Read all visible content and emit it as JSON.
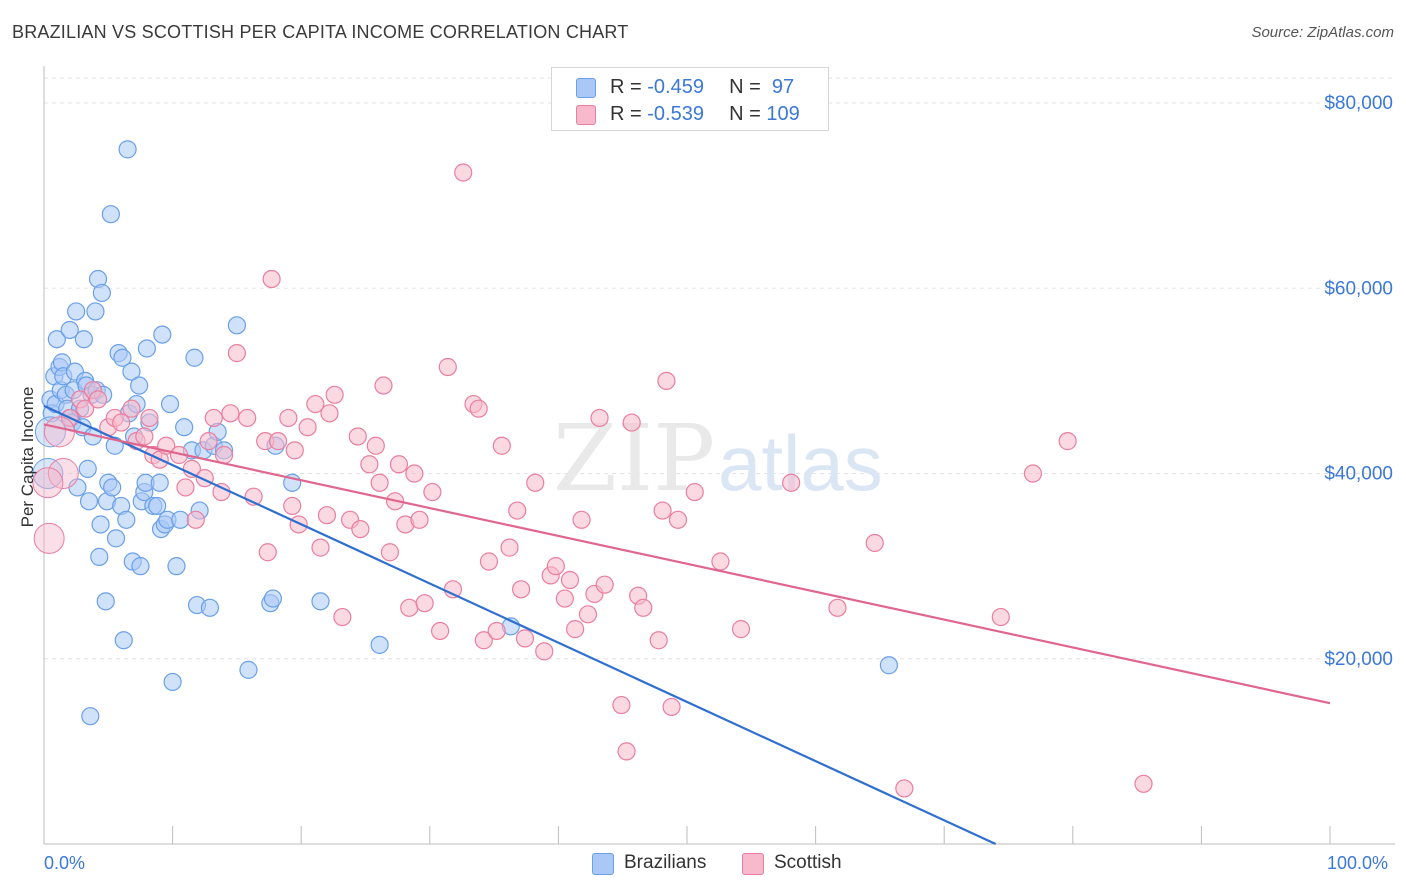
{
  "title": "BRAZILIAN VS SCOTTISH PER CAPITA INCOME CORRELATION CHART",
  "source": "Source: ZipAtlas.com",
  "legend": {
    "rows": [
      {
        "r_label": "R = ",
        "r_value": "-0.459",
        "n_label": "N = ",
        "n_value": " 97",
        "color": "#a9c8f5"
      },
      {
        "r_label": "R = ",
        "r_value": "-0.539",
        "n_label": "N = ",
        "n_value": "109",
        "color": "#f7b9cb"
      }
    ]
  },
  "bottom_legend": [
    {
      "label": "Brazilians",
      "color": "#a9c8f5"
    },
    {
      "label": "Scottish",
      "color": "#f7b9cb"
    }
  ],
  "watermark": {
    "zip": "ZIP",
    "atlas": "atlas"
  },
  "chart_data": {
    "type": "scatter",
    "title": "BRAZILIAN VS SCOTTISH PER CAPITA INCOME CORRELATION CHART",
    "xlabel": "",
    "ylabel": "Per Capita Income",
    "xlim": [
      0,
      100
    ],
    "ylim": [
      0,
      84000
    ],
    "x_tick_labels": [
      "0.0%",
      "100.0%"
    ],
    "y_ticks": [
      20000,
      40000,
      60000,
      80000
    ],
    "y_tick_labels": [
      "$20,000",
      "$40,000",
      "$60,000",
      "$80,000"
    ],
    "grid": true,
    "series": [
      {
        "name": "Brazilians",
        "color": "#6aa0ea",
        "fill": "#a9c8f5",
        "trend": {
          "x": [
            0,
            74
          ],
          "y": [
            47300,
            0
          ]
        },
        "points": [
          [
            0.5,
            48000
          ],
          [
            0.6,
            46500
          ],
          [
            0.8,
            50500
          ],
          [
            0.9,
            47500
          ],
          [
            1.0,
            54500
          ],
          [
            1.2,
            51500
          ],
          [
            1.3,
            49000
          ],
          [
            1.4,
            52000
          ],
          [
            1.5,
            50500
          ],
          [
            1.7,
            48500
          ],
          [
            1.8,
            47000
          ],
          [
            2.0,
            55500
          ],
          [
            2.1,
            46000
          ],
          [
            2.2,
            45500
          ],
          [
            2.3,
            49000
          ],
          [
            2.4,
            51000
          ],
          [
            2.5,
            57500
          ],
          [
            2.6,
            38500
          ],
          [
            2.8,
            47000
          ],
          [
            3.0,
            45000
          ],
          [
            3.1,
            54500
          ],
          [
            3.2,
            50000
          ],
          [
            3.3,
            49500
          ],
          [
            3.4,
            40500
          ],
          [
            3.5,
            37000
          ],
          [
            3.6,
            13800
          ],
          [
            3.7,
            48500
          ],
          [
            3.8,
            44000
          ],
          [
            4.0,
            57500
          ],
          [
            4.1,
            49000
          ],
          [
            4.2,
            61000
          ],
          [
            4.3,
            31000
          ],
          [
            4.4,
            34500
          ],
          [
            4.5,
            59500
          ],
          [
            4.6,
            48500
          ],
          [
            4.8,
            26200
          ],
          [
            4.9,
            37000
          ],
          [
            5.0,
            39000
          ],
          [
            5.2,
            68000
          ],
          [
            5.3,
            38500
          ],
          [
            5.5,
            43000
          ],
          [
            5.6,
            33000
          ],
          [
            5.8,
            53000
          ],
          [
            6.0,
            36500
          ],
          [
            6.1,
            52500
          ],
          [
            6.2,
            22000
          ],
          [
            6.4,
            35000
          ],
          [
            6.5,
            75000
          ],
          [
            6.6,
            46500
          ],
          [
            6.8,
            51000
          ],
          [
            6.9,
            30500
          ],
          [
            7.0,
            44000
          ],
          [
            7.2,
            47500
          ],
          [
            7.4,
            49500
          ],
          [
            7.5,
            30000
          ],
          [
            7.6,
            37000
          ],
          [
            7.8,
            38000
          ],
          [
            7.9,
            39000
          ],
          [
            8.0,
            53500
          ],
          [
            8.2,
            45500
          ],
          [
            8.5,
            36500
          ],
          [
            8.8,
            36500
          ],
          [
            9.0,
            39000
          ],
          [
            9.1,
            34000
          ],
          [
            9.2,
            55000
          ],
          [
            9.4,
            34500
          ],
          [
            9.6,
            35000
          ],
          [
            9.8,
            47500
          ],
          [
            10.0,
            17500
          ],
          [
            10.3,
            30000
          ],
          [
            10.6,
            35000
          ],
          [
            10.9,
            45000
          ],
          [
            11.5,
            42500
          ],
          [
            11.7,
            52500
          ],
          [
            11.9,
            25800
          ],
          [
            12.1,
            36000
          ],
          [
            12.4,
            42500
          ],
          [
            12.9,
            25500
          ],
          [
            13.2,
            43000
          ],
          [
            13.5,
            44500
          ],
          [
            14.0,
            42500
          ],
          [
            15.0,
            56000
          ],
          [
            15.9,
            18800
          ],
          [
            17.6,
            26000
          ],
          [
            17.8,
            26500
          ],
          [
            18.0,
            43000
          ],
          [
            19.3,
            39000
          ],
          [
            21.5,
            26200
          ],
          [
            26.1,
            21500
          ],
          [
            36.3,
            23500
          ],
          [
            65.7,
            19300
          ]
        ],
        "large_points": [
          [
            0.3,
            40000
          ],
          [
            0.5,
            44500
          ]
        ]
      },
      {
        "name": "Scottish",
        "color": "#ea7ea0",
        "fill": "#f7b9cb",
        "trend": {
          "x": [
            0,
            100
          ],
          "y": [
            45300,
            15200
          ]
        },
        "points": [
          [
            2.0,
            46000
          ],
          [
            2.8,
            48000
          ],
          [
            3.2,
            47000
          ],
          [
            3.8,
            49000
          ],
          [
            4.2,
            48000
          ],
          [
            5.0,
            45000
          ],
          [
            5.5,
            46000
          ],
          [
            6.0,
            45500
          ],
          [
            6.8,
            47000
          ],
          [
            7.2,
            43500
          ],
          [
            7.8,
            44000
          ],
          [
            8.2,
            46000
          ],
          [
            8.5,
            42000
          ],
          [
            9.0,
            41500
          ],
          [
            9.5,
            43000
          ],
          [
            10.5,
            42000
          ],
          [
            11.0,
            38500
          ],
          [
            11.5,
            40500
          ],
          [
            11.8,
            35000
          ],
          [
            12.5,
            39500
          ],
          [
            12.8,
            43500
          ],
          [
            13.2,
            46000
          ],
          [
            13.8,
            38000
          ],
          [
            14.0,
            42000
          ],
          [
            14.5,
            46500
          ],
          [
            15.0,
            53000
          ],
          [
            15.8,
            46000
          ],
          [
            16.3,
            37500
          ],
          [
            17.2,
            43500
          ],
          [
            17.4,
            31500
          ],
          [
            17.7,
            61000
          ],
          [
            18.2,
            43500
          ],
          [
            19.0,
            46000
          ],
          [
            19.3,
            36500
          ],
          [
            19.5,
            42500
          ],
          [
            19.8,
            34500
          ],
          [
            20.5,
            45000
          ],
          [
            21.1,
            47500
          ],
          [
            21.5,
            32000
          ],
          [
            22.0,
            35500
          ],
          [
            22.2,
            46500
          ],
          [
            22.6,
            48500
          ],
          [
            23.2,
            24500
          ],
          [
            23.8,
            35000
          ],
          [
            24.4,
            44000
          ],
          [
            24.6,
            34000
          ],
          [
            25.3,
            41000
          ],
          [
            25.8,
            43000
          ],
          [
            26.1,
            39000
          ],
          [
            26.4,
            49500
          ],
          [
            26.9,
            31500
          ],
          [
            27.3,
            37000
          ],
          [
            27.6,
            41000
          ],
          [
            28.1,
            34500
          ],
          [
            28.4,
            25500
          ],
          [
            28.8,
            40000
          ],
          [
            29.2,
            35000
          ],
          [
            29.6,
            26000
          ],
          [
            30.2,
            38000
          ],
          [
            30.8,
            23000
          ],
          [
            31.4,
            51500
          ],
          [
            31.8,
            27500
          ],
          [
            32.6,
            72500
          ],
          [
            33.4,
            47500
          ],
          [
            33.8,
            47000
          ],
          [
            34.2,
            22000
          ],
          [
            34.6,
            30500
          ],
          [
            35.2,
            23000
          ],
          [
            35.6,
            43000
          ],
          [
            36.2,
            32000
          ],
          [
            36.8,
            36000
          ],
          [
            37.1,
            27500
          ],
          [
            37.4,
            22200
          ],
          [
            38.2,
            39000
          ],
          [
            38.9,
            20800
          ],
          [
            39.4,
            29000
          ],
          [
            39.8,
            30000
          ],
          [
            40.5,
            26500
          ],
          [
            40.9,
            28500
          ],
          [
            41.3,
            23200
          ],
          [
            41.8,
            35000
          ],
          [
            42.3,
            24800
          ],
          [
            42.8,
            27000
          ],
          [
            43.2,
            46000
          ],
          [
            43.6,
            28000
          ],
          [
            44.9,
            15000
          ],
          [
            45.3,
            10000
          ],
          [
            45.7,
            45500
          ],
          [
            46.2,
            26800
          ],
          [
            46.6,
            25500
          ],
          [
            47.8,
            22000
          ],
          [
            48.1,
            36000
          ],
          [
            48.4,
            50000
          ],
          [
            48.8,
            14800
          ],
          [
            49.3,
            35000
          ],
          [
            50.6,
            38000
          ],
          [
            52.6,
            30500
          ],
          [
            54.2,
            23200
          ],
          [
            58.1,
            39000
          ],
          [
            61.7,
            25500
          ],
          [
            64.6,
            32500
          ],
          [
            66.9,
            6000
          ],
          [
            74.4,
            24500
          ],
          [
            76.9,
            40000
          ],
          [
            79.6,
            43500
          ],
          [
            85.5,
            6500
          ]
        ],
        "large_points": [
          [
            0.4,
            33000
          ],
          [
            1.2,
            44500
          ],
          [
            1.5,
            40000
          ],
          [
            0.3,
            39000
          ]
        ]
      }
    ]
  }
}
